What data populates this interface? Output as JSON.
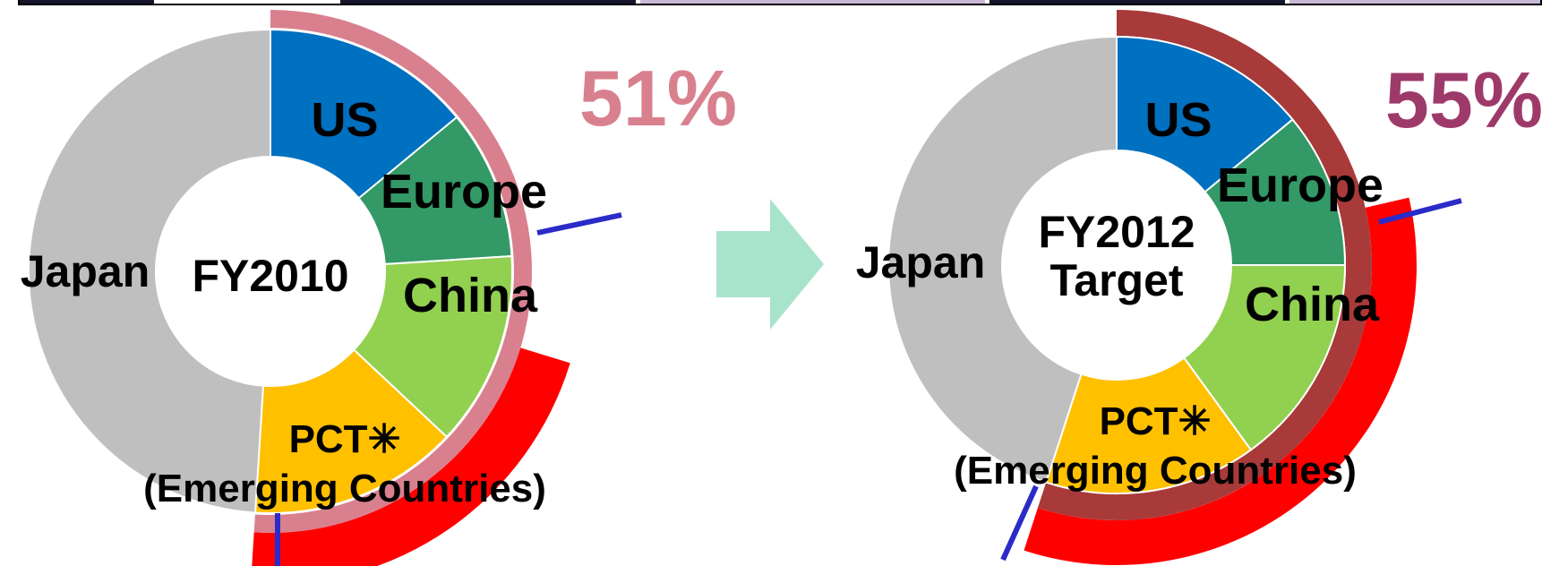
{
  "chart_data": [
    {
      "type": "donut",
      "center_label": [
        "FY2010"
      ],
      "segments": [
        {
          "name": "US",
          "value": 14,
          "color": "#0070C0"
        },
        {
          "name": "Europe",
          "value": 10,
          "color": "#339966"
        },
        {
          "name": "China",
          "value": 13,
          "color": "#92D050"
        },
        {
          "name": "PCT✳\n(Emerging Countries)",
          "label_lines": [
            "PCT✳",
            "(Emerging Countries)"
          ],
          "value": 14,
          "color": "#FFC000"
        },
        {
          "name": "Japan",
          "value": 49,
          "color": "#BFBFBF"
        }
      ],
      "overseas_share_label": "51%",
      "overseas_share": 51,
      "share_color": "#D9808F",
      "outer_band_color": "#FF0000"
    },
    {
      "type": "donut",
      "center_label": [
        "FY2012",
        "Target"
      ],
      "segments": [
        {
          "name": "US",
          "value": 14,
          "color": "#0070C0"
        },
        {
          "name": "Europe",
          "value": 11,
          "color": "#339966"
        },
        {
          "name": "China",
          "value": 15,
          "color": "#92D050"
        },
        {
          "name": "PCT✳\n(Emerging Countries)",
          "label_lines": [
            "PCT✳",
            "(Emerging Countries)"
          ],
          "value": 15,
          "color": "#FFC000"
        },
        {
          "name": "Japan",
          "value": 45,
          "color": "#BFBFBF"
        }
      ],
      "overseas_share_label": "55%",
      "overseas_share": 55,
      "share_color": "#9E3A6A",
      "outer_band_color": "#FF0000",
      "share_band_color": "#A83A3A"
    }
  ],
  "arrow_color": "#A8E4CC",
  "marker_color": "#2B2BC8"
}
